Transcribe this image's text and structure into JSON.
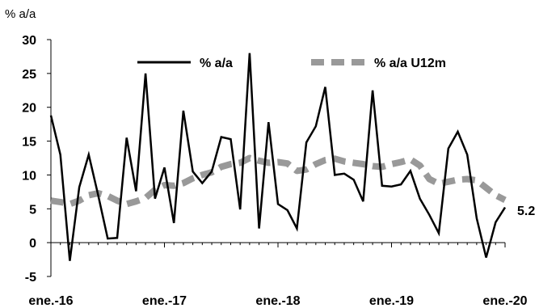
{
  "chart_data": {
    "type": "line",
    "unit_label": "% a/a",
    "ylim": [
      -5,
      30
    ],
    "y_ticks": [
      "30",
      "25",
      "20",
      "15",
      "10",
      "5",
      "0",
      "-5"
    ],
    "x_tick_labels": [
      "ene.-16",
      "ene.-17",
      "ene.-18",
      "ene.-19",
      "ene.-20"
    ],
    "end_label": "5.2",
    "legend_position": "top",
    "grid": false,
    "colors": {
      "series_1": "#000000",
      "series_2": "#999999"
    },
    "series": [
      {
        "name": "% a/a",
        "style": "solid",
        "values": [
          18.8,
          13.0,
          -2.7,
          8.2,
          13.0,
          7.0,
          0.6,
          0.7,
          15.5,
          7.6,
          25.0,
          6.5,
          11.1,
          2.9,
          19.5,
          10.5,
          8.8,
          10.5,
          15.6,
          15.3,
          4.9,
          28.0,
          2.1,
          17.8,
          5.7,
          4.8,
          2.1,
          14.8,
          17.2,
          23.0,
          10.0,
          10.2,
          9.3,
          6.1,
          22.5,
          8.4,
          8.3,
          8.6,
          10.6,
          6.5,
          4.1,
          1.4,
          13.9,
          16.4,
          13.0,
          3.6,
          -2.2,
          3.0,
          5.2
        ]
      },
      {
        "name": "% a/a U12m",
        "style": "dashed",
        "values": [
          6.2,
          6.0,
          5.7,
          6.2,
          7.0,
          7.3,
          6.9,
          6.2,
          5.7,
          6.1,
          6.6,
          7.8,
          8.5,
          8.4,
          8.8,
          9.5,
          10.0,
          10.4,
          11.2,
          11.6,
          11.8,
          12.5,
          12.1,
          11.8,
          11.9,
          11.7,
          10.6,
          10.8,
          11.6,
          12.2,
          12.4,
          12.0,
          11.8,
          11.6,
          11.3,
          11.2,
          11.6,
          11.9,
          12.3,
          11.4,
          9.4,
          8.7,
          9.0,
          9.3,
          9.4,
          9.2,
          8.1,
          7.0,
          6.3
        ]
      }
    ]
  }
}
